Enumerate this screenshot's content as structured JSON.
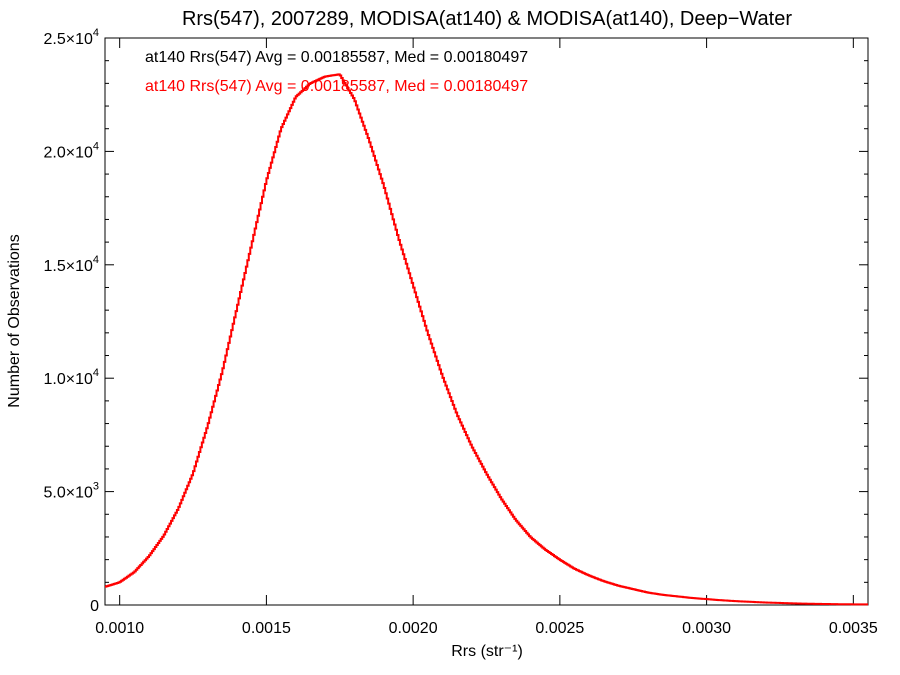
{
  "chart_data": {
    "type": "line",
    "title": "Rrs(547), 2007289, MODISA(at140) & MODISA(at140), Deep−Water",
    "xlabel": "Rrs (str⁻¹)",
    "ylabel": "Number of Observations",
    "xlim": [
      0.00095,
      0.00355
    ],
    "ylim": [
      0,
      25000
    ],
    "x_ticks": [
      {
        "value": 0.001,
        "label": "0.0010"
      },
      {
        "value": 0.0015,
        "label": "0.0015"
      },
      {
        "value": 0.002,
        "label": "0.0020"
      },
      {
        "value": 0.0025,
        "label": "0.0025"
      },
      {
        "value": 0.003,
        "label": "0.0030"
      },
      {
        "value": 0.0035,
        "label": "0.0035"
      }
    ],
    "y_ticks": [
      {
        "value": 0,
        "mantissa": "0",
        "exponent": ""
      },
      {
        "value": 5000,
        "mantissa": "5.0×10",
        "exponent": "3"
      },
      {
        "value": 10000,
        "mantissa": "1.0×10",
        "exponent": "4"
      },
      {
        "value": 15000,
        "mantissa": "1.5×10",
        "exponent": "4"
      },
      {
        "value": 20000,
        "mantissa": "2.0×10",
        "exponent": "4"
      },
      {
        "value": 25000,
        "mantissa": "2.5×10",
        "exponent": "4"
      }
    ],
    "annotations": [
      {
        "text": "at140 Rrs(547) Avg = 0.00185587, Med = 0.00180497",
        "color": "#000000"
      },
      {
        "text": "at140 Rrs(547) Avg = 0.00185587, Med = 0.00180497",
        "color": "#ff0000"
      }
    ],
    "series": [
      {
        "color": "#ff0000",
        "step": true,
        "points": [
          [
            0.00095,
            800
          ],
          [
            0.001,
            1000
          ],
          [
            0.00105,
            1450
          ],
          [
            0.0011,
            2150
          ],
          [
            0.00115,
            3050
          ],
          [
            0.0012,
            4250
          ],
          [
            0.00125,
            5800
          ],
          [
            0.0013,
            7900
          ],
          [
            0.00135,
            10300
          ],
          [
            0.0014,
            13100
          ],
          [
            0.00145,
            15900
          ],
          [
            0.0015,
            18700
          ],
          [
            0.00155,
            21000
          ],
          [
            0.0016,
            22400
          ],
          [
            0.00165,
            23000
          ],
          [
            0.0017,
            23300
          ],
          [
            0.00175,
            23400
          ],
          [
            0.0018,
            22300
          ],
          [
            0.00185,
            20500
          ],
          [
            0.0019,
            18500
          ],
          [
            0.00195,
            16200
          ],
          [
            0.002,
            14100
          ],
          [
            0.00205,
            12000
          ],
          [
            0.0021,
            10100
          ],
          [
            0.00215,
            8400
          ],
          [
            0.0022,
            7000
          ],
          [
            0.00225,
            5800
          ],
          [
            0.0023,
            4700
          ],
          [
            0.00235,
            3750
          ],
          [
            0.0024,
            3000
          ],
          [
            0.00245,
            2450
          ],
          [
            0.0025,
            2000
          ],
          [
            0.00255,
            1600
          ],
          [
            0.0026,
            1300
          ],
          [
            0.00265,
            1050
          ],
          [
            0.0027,
            850
          ],
          [
            0.00275,
            700
          ],
          [
            0.0028,
            550
          ],
          [
            0.00285,
            450
          ],
          [
            0.0029,
            380
          ],
          [
            0.00295,
            310
          ],
          [
            0.003,
            260
          ],
          [
            0.00305,
            210
          ],
          [
            0.0031,
            170
          ],
          [
            0.00315,
            140
          ],
          [
            0.0032,
            110
          ],
          [
            0.00325,
            90
          ],
          [
            0.0033,
            70
          ],
          [
            0.00335,
            55
          ],
          [
            0.0034,
            45
          ],
          [
            0.00345,
            35
          ],
          [
            0.0035,
            30
          ],
          [
            0.00355,
            25
          ]
        ]
      }
    ]
  }
}
